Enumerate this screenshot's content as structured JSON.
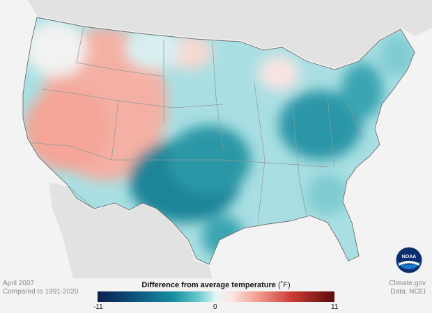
{
  "footer": {
    "date": "April 2007",
    "baseline": "Compared to 1991-2020",
    "source_site": "Climate.gov",
    "data_source": "Data: NCEI"
  },
  "legend": {
    "title": "Difference from average temperature",
    "unit": "(˚F)",
    "min_label": "-11",
    "mid_label": "0",
    "max_label": "11"
  },
  "logo": {
    "text": "NOAA"
  },
  "colors": {
    "background": "#f3f3f3",
    "warm": "#f3a79a",
    "neutral": "#eef7f7",
    "cool": "#35a6b3",
    "cold": "#16788f"
  }
}
